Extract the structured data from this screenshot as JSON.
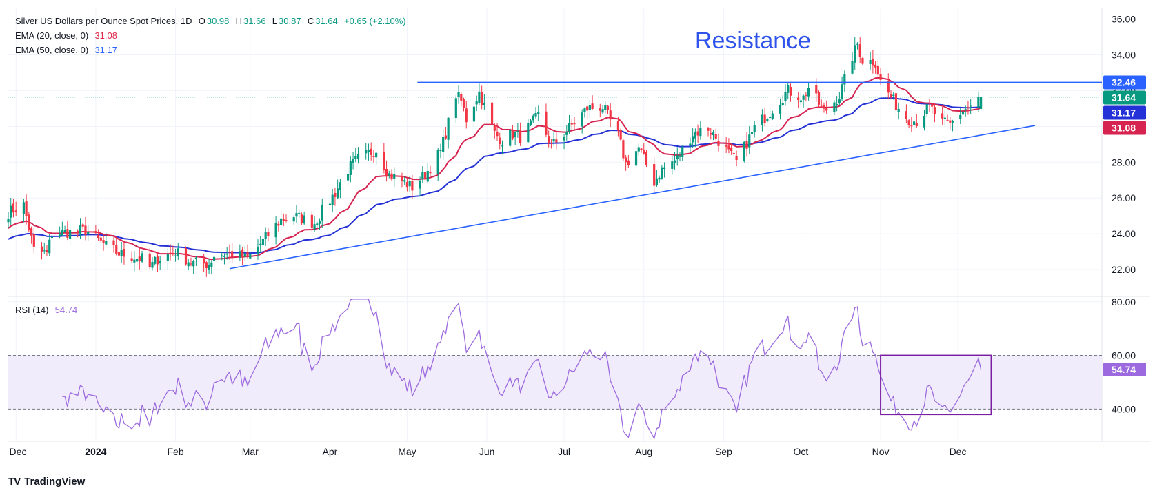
{
  "legend": {
    "title": "Silver US Dollars per Ounce Spot Prices, 1D",
    "open_label": "O",
    "open": "30.98",
    "high_label": "H",
    "high": "31.66",
    "low_label": "L",
    "low": "30.87",
    "close_label": "C",
    "close": "31.64",
    "change": "+0.65 (+2.10%)",
    "ema20_label": "EMA (20, close, 0)",
    "ema20_value": "31.08",
    "ema50_label": "EMA (50, close, 0)",
    "ema50_value": "31.17",
    "rsi_label": "RSI (14)",
    "rsi_value": "54.74"
  },
  "annotation": {
    "resistance": "Resistance"
  },
  "brand": {
    "name": "TradingView",
    "logo": "TV"
  },
  "colors": {
    "up": "#089981",
    "down": "#f23645",
    "ema20": "#d6234f",
    "ema50": "#2431d6",
    "trendline": "#2962ff",
    "rsi": "#9c6ade",
    "rsi_band": "#f1ecfb",
    "box": "#7b1fa2",
    "grid": "#f0f3fa",
    "axis_text": "#131722"
  },
  "chart_data": [
    {
      "type": "candlestick",
      "title": "Silver US Dollars per Ounce Spot Prices, 1D",
      "ylim": [
        20.5,
        36.6
      ],
      "y_ticks": [
        22.0,
        24.0,
        26.0,
        28.0,
        30.0,
        32.0,
        34.0,
        36.0
      ],
      "x_ticks": [
        "Dec",
        "2024",
        "Feb",
        "Mar",
        "Apr",
        "May",
        "Jun",
        "Jul",
        "Aug",
        "Sep",
        "Oct",
        "Nov",
        "Dec"
      ],
      "x_tick_dates": [
        "2023-12-01",
        "2024-01-01",
        "2024-02-01",
        "2024-03-01",
        "2024-04-01",
        "2024-05-01",
        "2024-06-01",
        "2024-07-01",
        "2024-08-01",
        "2024-09-01",
        "2024-10-01",
        "2024-11-01",
        "2024-12-01"
      ],
      "x_range": [
        "2023-11-28",
        "2025-01-26"
      ],
      "anchors": [
        [
          "2023-11-28",
          25.2
        ],
        [
          "2023-12-04",
          25.6
        ],
        [
          "2023-12-08",
          23.1
        ],
        [
          "2023-12-13",
          22.9
        ],
        [
          "2023-12-15",
          24.0
        ],
        [
          "2023-12-28",
          24.2
        ],
        [
          "2024-01-05",
          23.3
        ],
        [
          "2024-01-10",
          22.9
        ],
        [
          "2024-01-19",
          22.6
        ],
        [
          "2024-01-22",
          22.1
        ],
        [
          "2024-01-25",
          22.6
        ],
        [
          "2024-02-01",
          23.0
        ],
        [
          "2024-02-07",
          22.4
        ],
        [
          "2024-02-14",
          22.3
        ],
        [
          "2024-02-16",
          22.8
        ],
        [
          "2024-02-23",
          22.9
        ],
        [
          "2024-02-29",
          22.6
        ],
        [
          "2024-03-06",
          23.6
        ],
        [
          "2024-03-13",
          24.8
        ],
        [
          "2024-03-18",
          25.0
        ],
        [
          "2024-03-26",
          24.6
        ],
        [
          "2024-04-03",
          26.3
        ],
        [
          "2024-04-08",
          27.6
        ],
        [
          "2024-04-12",
          28.2
        ],
        [
          "2024-04-19",
          28.7
        ],
        [
          "2024-04-24",
          27.3
        ],
        [
          "2024-05-01",
          26.8
        ],
        [
          "2024-05-03",
          26.6
        ],
        [
          "2024-05-08",
          27.3
        ],
        [
          "2024-05-14",
          28.6
        ],
        [
          "2024-05-20",
          31.8
        ],
        [
          "2024-05-22",
          31.4
        ],
        [
          "2024-05-24",
          30.4
        ],
        [
          "2024-05-29",
          31.9
        ],
        [
          "2024-06-04",
          29.6
        ],
        [
          "2024-06-07",
          29.2
        ],
        [
          "2024-06-11",
          29.6
        ],
        [
          "2024-06-14",
          29.4
        ],
        [
          "2024-06-21",
          30.6
        ],
        [
          "2024-06-26",
          28.9
        ],
        [
          "2024-07-01",
          29.6
        ],
        [
          "2024-07-10",
          31.0
        ],
        [
          "2024-07-16",
          31.1
        ],
        [
          "2024-07-22",
          29.5
        ],
        [
          "2024-07-25",
          27.9
        ],
        [
          "2024-07-30",
          28.8
        ],
        [
          "2024-08-05",
          26.9
        ],
        [
          "2024-08-08",
          27.6
        ],
        [
          "2024-08-14",
          28.2
        ],
        [
          "2024-08-20",
          29.6
        ],
        [
          "2024-08-26",
          29.9
        ],
        [
          "2024-09-03",
          28.5
        ],
        [
          "2024-09-06",
          28.0
        ],
        [
          "2024-09-13",
          29.9
        ],
        [
          "2024-09-20",
          31.0
        ],
        [
          "2024-09-26",
          32.0
        ],
        [
          "2024-10-02",
          31.6
        ],
        [
          "2024-10-04",
          32.2
        ],
        [
          "2024-10-10",
          30.8
        ],
        [
          "2024-10-16",
          31.7
        ],
        [
          "2024-10-21",
          33.9
        ],
        [
          "2024-10-23",
          34.6
        ],
        [
          "2024-10-25",
          33.7
        ],
        [
          "2024-10-30",
          33.6
        ],
        [
          "2024-11-01",
          32.5
        ],
        [
          "2024-11-07",
          31.2
        ],
        [
          "2024-11-12",
          30.4
        ],
        [
          "2024-11-15",
          30.3
        ],
        [
          "2024-11-20",
          31.1
        ],
        [
          "2024-11-25",
          30.2
        ],
        [
          "2024-11-28",
          30.1
        ],
        [
          "2024-12-03",
          30.9
        ],
        [
          "2024-12-06",
          31.1
        ],
        [
          "2024-12-10",
          31.64
        ]
      ],
      "last_close": 31.64,
      "ema20_last": 31.08,
      "ema50_last": 31.17,
      "price_labels": [
        {
          "text": "32.46",
          "value": 32.46,
          "bg": "#2962ff"
        },
        {
          "text": "31.64",
          "value": 31.64,
          "bg": "#089981"
        },
        {
          "text": "31.17",
          "value": 31.17,
          "bg": "#2431d6"
        },
        {
          "text": "31.08",
          "value": 31.08,
          "bg": "#d6234f"
        }
      ],
      "resistance_level": 32.46,
      "resistance_start": "2024-05-05",
      "trendline": {
        "start": [
          "2024-02-22",
          22.05
        ],
        "end": [
          "2024-12-31",
          30.05
        ]
      }
    },
    {
      "type": "line",
      "name": "RSI (14)",
      "ylim": [
        28,
        82
      ],
      "y_ticks": [
        40.0,
        60.0,
        80.0
      ],
      "band": [
        40,
        60
      ],
      "last_value": 54.74,
      "value_label": "54.74",
      "highlight_box": {
        "x": [
          "2024-11-01",
          "2024-12-14"
        ],
        "y": [
          38,
          60
        ]
      }
    }
  ]
}
